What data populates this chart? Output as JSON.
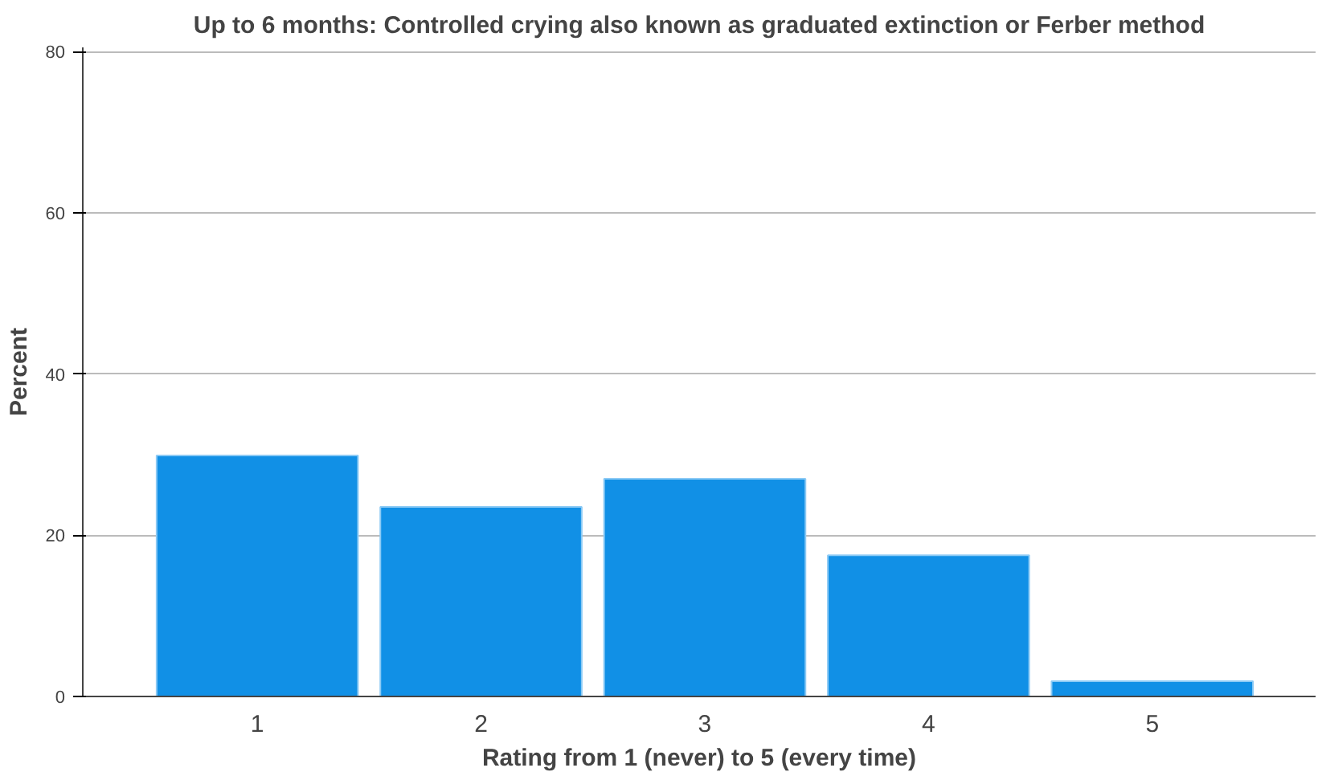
{
  "chart_data": {
    "type": "bar",
    "title": "Up to 6 months: Controlled crying also known as graduated extinction or Ferber method",
    "xlabel": "Rating from 1 (never) to 5 (every time)",
    "ylabel": "Percent",
    "categories": [
      "1",
      "2",
      "3",
      "4",
      "5"
    ],
    "values": [
      29.9,
      23.5,
      27.0,
      17.5,
      1.9
    ],
    "color": "#1190e6",
    "ylim": [
      0,
      80.5
    ],
    "yticks": [
      0,
      20,
      40,
      60,
      80
    ],
    "grid": "y"
  }
}
